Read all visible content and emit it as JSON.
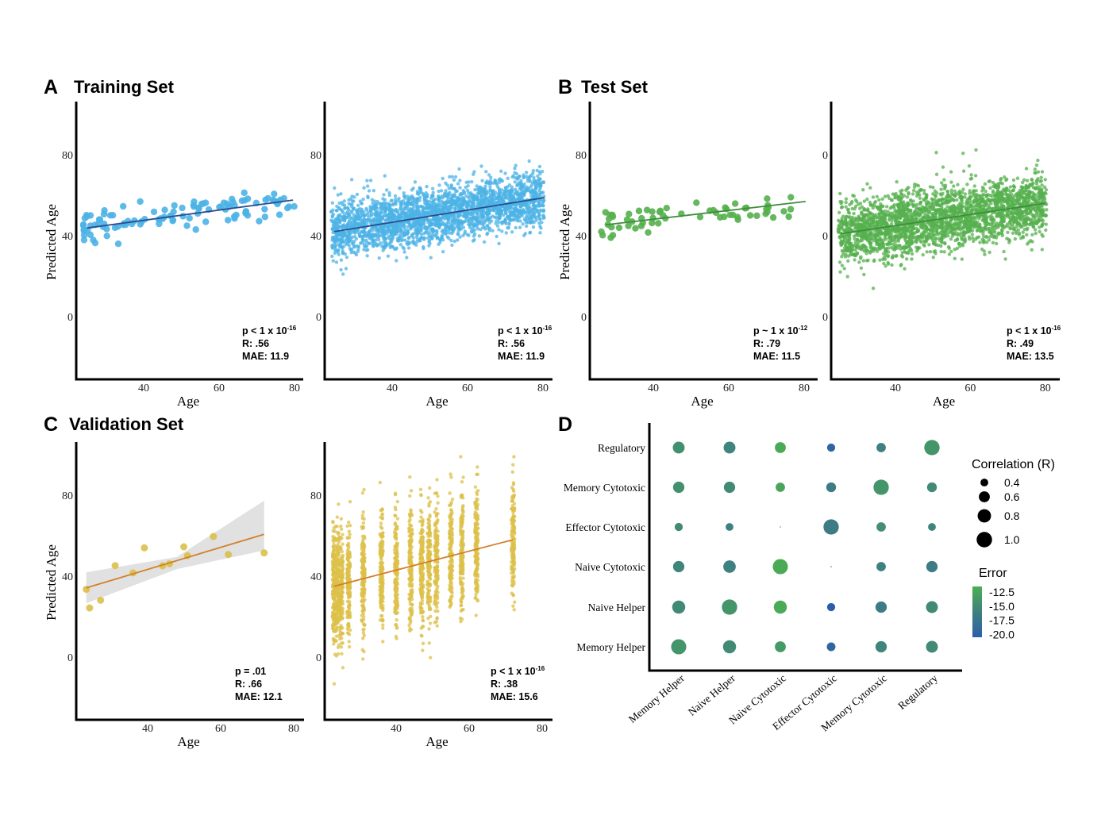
{
  "sections": [
    {
      "letter": "A",
      "title": "Training Set"
    },
    {
      "letter": "B",
      "title": "Test Set"
    },
    {
      "letter": "C",
      "title": "Validation Set"
    },
    {
      "letter": "D",
      "title": ""
    }
  ],
  "chart_data": [
    {
      "id": "A1",
      "type": "scatter",
      "xlabel": "Age",
      "ylabel": "Predicted Age",
      "xticks": [
        "40",
        "60",
        "80"
      ],
      "yticks": [
        "0",
        "40",
        "80"
      ],
      "xlim": [
        22,
        84
      ],
      "ylim": [
        -31,
        106
      ],
      "color": "#4cb3e6",
      "line_color": "#2a4d8f",
      "fit": {
        "x": [
          24.9,
          79.6
        ],
        "y": [
          43.8,
          57.6
        ]
      },
      "points": {
        "n": 110,
        "age_range": [
          24,
          80
        ],
        "pred_range": [
          36,
          62
        ],
        "spread_sd": 3.5
      },
      "stats": {
        "p_base": "p < 1 x 10",
        "p_exp": "-16",
        "r": "R: .56",
        "mae": "MAE: 11.9"
      }
    },
    {
      "id": "A2",
      "type": "scatter",
      "xlabel": "Age",
      "ylabel": "",
      "xticks": [
        "40",
        "60",
        "80"
      ],
      "yticks": [
        "0",
        "40",
        "80"
      ],
      "xlim": [
        22,
        84
      ],
      "ylim": [
        -31,
        106
      ],
      "color": "#4cb3e6",
      "line_color": "#2a4d8f",
      "fit": {
        "x": [
          24.6,
          80.4
        ],
        "y": [
          42,
          58.8
        ]
      },
      "points": {
        "n": 2600,
        "age_range": [
          24,
          80
        ],
        "pred_range": [
          21,
          92
        ],
        "spread_sd": 7
      },
      "stats": {
        "p_base": "p < 1 x 10",
        "p_exp": "-16",
        "r": "R: .56",
        "mae": "MAE: 11.9"
      }
    },
    {
      "id": "B1",
      "type": "scatter",
      "xlabel": "Age",
      "ylabel": "Predicted Age",
      "xticks": [
        "40",
        "60",
        "80"
      ],
      "yticks": [
        "0",
        "40",
        "80"
      ],
      "xlim": [
        22,
        84
      ],
      "ylim": [
        -31,
        106
      ],
      "color": "#55b04e",
      "line_color": "#3e8e3e",
      "band_color": "#d4d4d4",
      "fit": {
        "x": [
          27.4,
          80.4
        ],
        "y": [
          45.4,
          56.9
        ]
      },
      "points": {
        "n": 62,
        "age_range": [
          26,
          80
        ],
        "pred_range": [
          39,
          59
        ],
        "spread_sd": 3.5
      },
      "stats": {
        "p_base": "p ~ 1 x 10",
        "p_exp": "-12",
        "r": "R: .79",
        "mae": "MAE: 11.5"
      }
    },
    {
      "id": "B2",
      "type": "scatter",
      "xlabel": "Age",
      "ylabel": "",
      "xticks": [
        "40",
        "60",
        "80"
      ],
      "yticks": [
        "0",
        "0",
        "0"
      ],
      "xlim": [
        22,
        84
      ],
      "ylim": [
        -31,
        106
      ],
      "color": "#55b04e",
      "line_color": "#3e8e3e",
      "fit": {
        "x": [
          25.5,
          80
        ],
        "y": [
          41,
          56
        ]
      },
      "points": {
        "n": 2600,
        "age_range": [
          25,
          80
        ],
        "pred_range": [
          14,
          95
        ],
        "spread_sd": 8
      },
      "stats": {
        "p_base": "p < 1 x 10",
        "p_exp": "-16",
        "r": "R: .49",
        "mae": "MAE: 13.5"
      }
    },
    {
      "id": "C1",
      "type": "scatter",
      "xlabel": "Age",
      "ylabel": "Predicted Age",
      "xticks": [
        "40",
        "60",
        "80"
      ],
      "yticks": [
        "0",
        "40",
        "80"
      ],
      "xlim": [
        20,
        82
      ],
      "ylim": [
        -31,
        106
      ],
      "color": "#dcc04a",
      "line_color": "#d1802a",
      "band_color": "#d9d9d9",
      "x": [
        23.2,
        24.1,
        27.1,
        31.1,
        36.0,
        39.1,
        44.1,
        46.0,
        49.9,
        50.9,
        58.0,
        62.1,
        71.9
      ],
      "y": [
        33.5,
        24.3,
        28.1,
        45.2,
        41.6,
        54.0,
        45.1,
        46.1,
        54.5,
        50.1,
        59.6,
        50.7,
        51.5
      ],
      "fit": {
        "x": [
          23.2,
          71.9
        ],
        "y": [
          34.2,
          60.7
        ]
      },
      "ci": {
        "x": [
          23.2,
          48,
          71.9
        ],
        "lower": [
          26.6,
          43.5,
          52.7
        ],
        "upper": [
          41.9,
          49.5,
          77.3
        ]
      },
      "stats": {
        "p_base": "p = .01",
        "p_exp": "",
        "r": "R: .66",
        "mae": "MAE: 12.1"
      }
    },
    {
      "id": "C2",
      "type": "scatter",
      "xlabel": "Age",
      "ylabel": "",
      "xticks": [
        "40",
        "60",
        "80"
      ],
      "yticks": [
        "0",
        "40",
        "80"
      ],
      "xlim": [
        20,
        82
      ],
      "ylim": [
        -31,
        106
      ],
      "color": "#dcc04a",
      "line_color": "#d1802a",
      "fit": {
        "x": [
          23,
          72
        ],
        "y": [
          35,
          58
        ]
      },
      "points": {
        "n": 2400,
        "ages": [
          23,
          24,
          25,
          27,
          31,
          36,
          40,
          44,
          47,
          49,
          51,
          55,
          58,
          62,
          72
        ],
        "pred_range": [
          -15,
          99
        ],
        "spread_sd": 15
      },
      "stats": {
        "p_base": "p < 1 x 10",
        "p_exp": "-16",
        "r": "R: .38",
        "mae": "MAE: 15.6"
      }
    },
    {
      "id": "D",
      "type": "scatter",
      "rows": [
        "Regulatory",
        "Memory Cytotoxic",
        "Effector Cytotoxic",
        "Naive Cytotoxic",
        "Naive Helper",
        "Memory Helper"
      ],
      "columns": [
        "Memory Helper",
        "Naive Helper",
        "Naive Cytotoxic",
        "Effector Cytotoxic",
        "Memory Cytotoxic",
        "Regulatory"
      ],
      "correlation": [
        [
          0.67,
          0.67,
          0.6,
          0.42,
          0.49,
          0.99
        ],
        [
          0.63,
          0.63,
          0.49,
          0.52,
          0.99,
          0.52
        ],
        [
          0.42,
          0.4,
          0.2,
          0.99,
          0.49,
          0.4
        ],
        [
          0.63,
          0.72,
          0.97,
          0.2,
          0.49,
          0.63
        ],
        [
          0.77,
          0.99,
          0.77,
          0.42,
          0.63,
          0.67
        ],
        [
          0.97,
          0.77,
          0.6,
          0.45,
          0.63,
          0.67
        ]
      ],
      "error": [
        [
          -14.5,
          -15.5,
          -12.0,
          -19.5,
          -16.0,
          -14.0
        ],
        [
          -14.5,
          -15.0,
          -12.5,
          -16.5,
          -14.0,
          -15.0
        ],
        [
          -15.0,
          -16.0,
          -14.0,
          -16.5,
          -14.5,
          -15.5
        ],
        [
          -15.5,
          -16.0,
          -12.0,
          -19.0,
          -16.0,
          -16.5
        ],
        [
          -15.0,
          -14.0,
          -12.0,
          -20.5,
          -16.5,
          -15.0
        ],
        [
          -14.0,
          -15.0,
          -13.5,
          -19.5,
          -15.5,
          -15.0
        ]
      ],
      "legend_size": {
        "title": "Correlation (R)",
        "values": [
          0.4,
          0.6,
          0.8,
          1.0
        ],
        "labels": [
          "0.4",
          "0.6",
          "0.8",
          "1.0"
        ]
      },
      "legend_color": {
        "title": "Error",
        "labels": [
          "-12.5",
          "-15.0",
          "-17.5",
          "-20.0"
        ],
        "values": [
          -12.5,
          -15.0,
          -17.5,
          -20.0
        ],
        "range": [
          -20.5,
          -11.5
        ],
        "colors": [
          "#2c5fa8",
          "#3f8080",
          "#4caf50"
        ]
      }
    }
  ]
}
